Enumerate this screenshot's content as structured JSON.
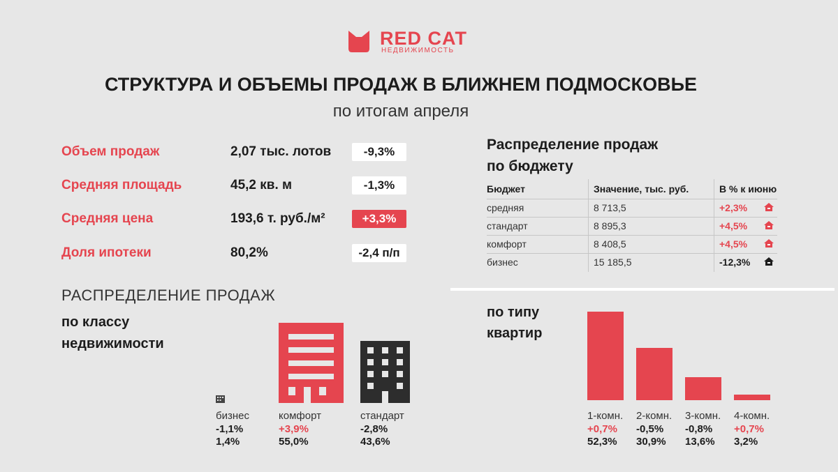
{
  "logo": {
    "name": "RED CAT",
    "subtitle": "НЕДВИЖИМОСТЬ"
  },
  "title": "СТРУКТУРА И ОБЪЕМЫ ПРОДАЖ В БЛИЖНЕМ ПОДМОСКОВЬЕ",
  "subtitle": "по итогам апреля",
  "metrics": [
    {
      "label": "Объем продаж",
      "value": "2,07 тыс. лотов",
      "change": "-9,3%"
    },
    {
      "label": "Средняя площадь",
      "value": "45,2 кв. м",
      "change": "-1,3%"
    },
    {
      "label": "Средняя цена",
      "value": "193,6 т. руб./м²",
      "change": "+3,3%"
    },
    {
      "label": "Доля ипотеки",
      "value": "80,2%",
      "change": "-2,4 п/п"
    }
  ],
  "budget_table": {
    "title_line1": "Распределение продаж",
    "title_line2": "по бюджету",
    "headers": [
      "Бюджет",
      "Значение, тыс. руб.",
      "В % к июню"
    ],
    "rows": [
      {
        "name": "средняя",
        "value": "8 713,5",
        "pct": "+2,3%"
      },
      {
        "name": "стандарт",
        "value": "8 895,3",
        "pct": "+4,5%"
      },
      {
        "name": "комфорт",
        "value": "8 408,5",
        "pct": "+4,5%"
      },
      {
        "name": "бизнес",
        "value": "15 185,5",
        "pct": "-12,3%"
      }
    ]
  },
  "class_section": {
    "title": "РАСПРЕДЕЛЕНИЕ ПРОДАЖ",
    "sub_line1": "по классу",
    "sub_line2": "недвижимости",
    "items": [
      {
        "name": "бизнес",
        "change": "-1,1%",
        "share": "1,4%"
      },
      {
        "name": "комфорт",
        "change": "+3,9%",
        "share": "55,0%"
      },
      {
        "name": "стандарт",
        "change": "-2,8%",
        "share": "43,6%"
      }
    ]
  },
  "apartment_section": {
    "title_line1": "по типу",
    "title_line2": "квартир"
  },
  "chart_data": {
    "type": "bar",
    "categories": [
      "1-комн.",
      "2-комн.",
      "3-комн.",
      "4-комн."
    ],
    "values": [
      52.3,
      30.9,
      13.6,
      3.2
    ],
    "value_labels": [
      "52,3%",
      "30,9%",
      "13,6%",
      "3,2%"
    ],
    "changes": [
      "+0,7%",
      "-0,5%",
      "-0,8%",
      "+0,7%"
    ],
    "ylim": [
      0,
      55
    ],
    "grid": false
  },
  "colors": {
    "accent": "#e5454f",
    "dark": "#2d2d2d",
    "background": "#e7e7e7"
  }
}
